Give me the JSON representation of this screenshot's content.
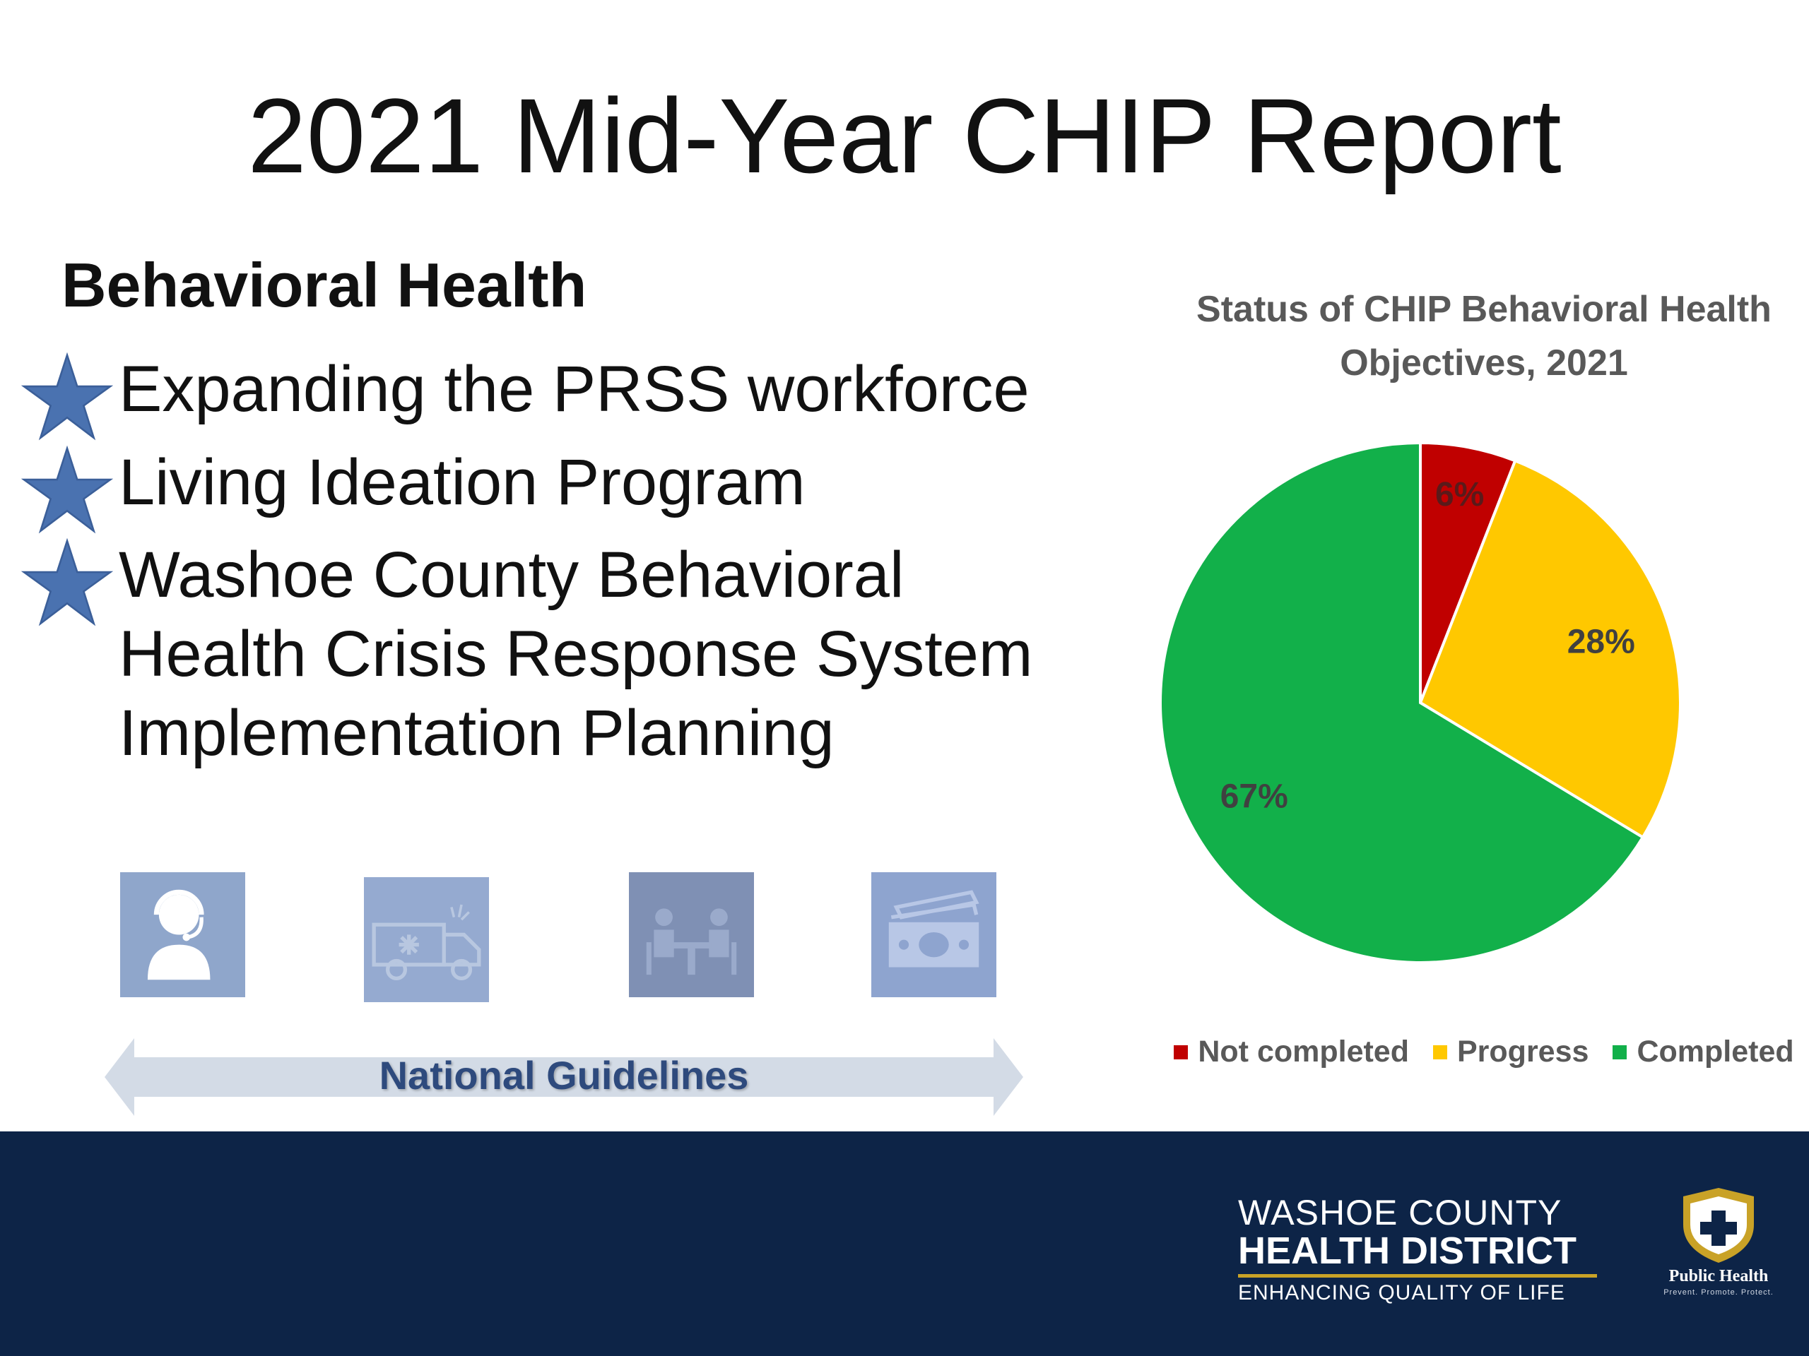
{
  "slide": {
    "title": "2021 Mid-Year CHIP Report",
    "section_heading": "Behavioral Health",
    "bullets": [
      {
        "lines": [
          "Expanding the PRSS workforce"
        ],
        "icon": "star-icon"
      },
      {
        "lines": [
          "Living Ideation Program"
        ],
        "icon": "star-icon"
      },
      {
        "lines": [
          "Washoe County Behavioral",
          "Health Crisis Response System",
          "Implementation Planning"
        ],
        "icon": "star-icon"
      }
    ],
    "tiles": [
      {
        "icon": "call-center-agent-icon"
      },
      {
        "icon": "ambulance-icon"
      },
      {
        "icon": "meeting-icon"
      },
      {
        "icon": "money-icon"
      }
    ],
    "guidelines_label": "National Guidelines",
    "colors": {
      "star": "#4a72b0",
      "tile": "#8fa6cb",
      "arrow": "#d3dbe6",
      "footer": "#0d2447"
    }
  },
  "chart_data": {
    "type": "pie",
    "title": "Status of CHIP Behavioral Health Objectives, 2021",
    "categories": [
      "Not completed",
      "Progress",
      "Completed"
    ],
    "values": [
      6,
      28,
      67
    ],
    "labels": [
      "6%",
      "28%",
      "67%"
    ],
    "colors": [
      "#c00000",
      "#ffc800",
      "#12b04a"
    ],
    "legend_position": "bottom"
  },
  "footer": {
    "org_line1": "WASHOE COUNTY",
    "org_line2": "HEALTH DISTRICT",
    "org_line3": "ENHANCING QUALITY OF LIFE",
    "badge_label": "Public Health",
    "badge_tagline": "Prevent. Promote. Protect."
  }
}
